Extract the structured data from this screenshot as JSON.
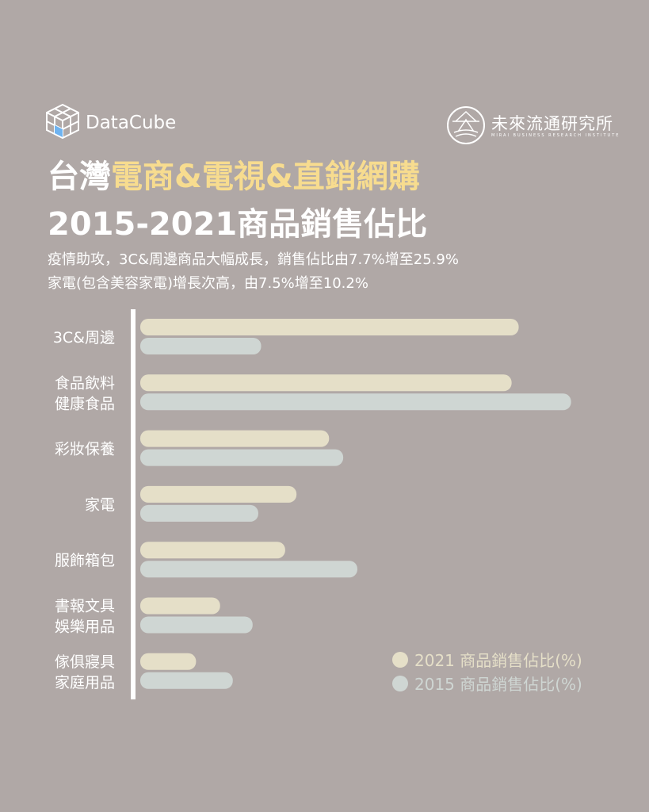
{
  "brand": {
    "name": "DataCube",
    "icon": "cube-grid-icon"
  },
  "partner": {
    "name": "未來流通研究所",
    "subtitle": "MIRAI BUSINESS RESEARCH INSTITUTE",
    "icon": "circle-seal-icon"
  },
  "title": {
    "prefix": "台灣",
    "highlight": "電商&電視&直銷網購",
    "line2": "2015-2021商品銷售佔比"
  },
  "subtitle": {
    "line1": "疫情助攻，3C&周邊商品大幅成長，銷售佔比由7.7%增至25.9%",
    "line2": "家電(包含美容家電)增長次高，由7.5%增至10.2%"
  },
  "colors": {
    "background": "#b0a8a6",
    "highlight": "#f7dc8f",
    "series_2021": "#e5dfc8",
    "series_2015": "#cfd6d3"
  },
  "chart_data": {
    "type": "bar",
    "orientation": "horizontal",
    "categories": [
      [
        "3C&周邊"
      ],
      [
        "食品飲料",
        "健康食品"
      ],
      [
        "彩妝保養"
      ],
      [
        "家電"
      ],
      [
        "服飾箱包"
      ],
      [
        "書報文具",
        "娛樂用品"
      ],
      [
        "傢俱寢具",
        "家庭用品"
      ]
    ],
    "series": [
      {
        "name": "2021 商品銷售佔比(%)",
        "color": "#e5dfc8",
        "values": [
          25.9,
          25.4,
          12.5,
          10.2,
          9.4,
          4.8,
          3.1
        ]
      },
      {
        "name": "2015 商品銷售佔比(%)",
        "color": "#cfd6d3",
        "values": [
          7.7,
          29.6,
          13.5,
          7.5,
          14.5,
          7.1,
          5.7
        ]
      }
    ],
    "xlim": [
      0,
      30
    ],
    "grid": false,
    "legend": "bottom-right"
  }
}
